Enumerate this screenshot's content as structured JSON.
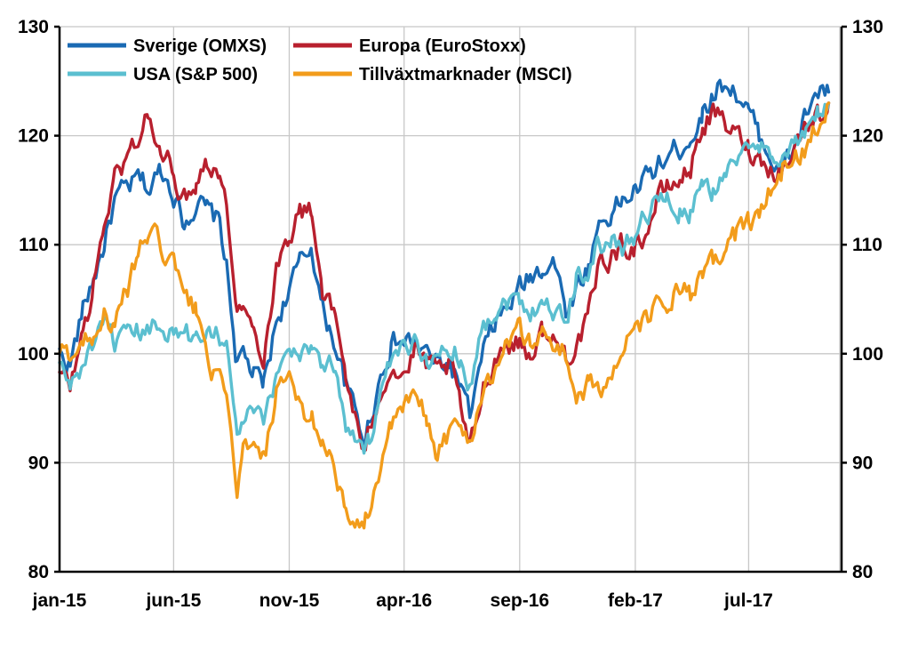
{
  "chart_data": {
    "type": "line",
    "x_labels": [
      "jan-15",
      "jun-15",
      "nov-15",
      "apr-16",
      "sep-16",
      "feb-17",
      "jul-17"
    ],
    "x_range": [
      "2015-01",
      "2017-10"
    ],
    "ylim": [
      80,
      130
    ],
    "y_ticks": [
      80,
      90,
      100,
      110,
      120,
      130
    ],
    "y_tick_labels": [
      "80",
      "90",
      "100",
      "110",
      "120",
      "130"
    ],
    "grid": true,
    "secondary_y_axis": true,
    "legend_position": "top-left",
    "series": [
      {
        "name": "Sverige (OMXS)",
        "color": "#1a6ab3",
        "points": [
          [
            "2015-01-01",
            100
          ],
          [
            "2015-01-15",
            99
          ],
          [
            "2015-02-01",
            104
          ],
          [
            "2015-02-15",
            107
          ],
          [
            "2015-03-01",
            110
          ],
          [
            "2015-03-15",
            114
          ],
          [
            "2015-04-01",
            115
          ],
          [
            "2015-04-15",
            116
          ],
          [
            "2015-05-01",
            115
          ],
          [
            "2015-05-15",
            117
          ],
          [
            "2015-06-01",
            115
          ],
          [
            "2015-06-15",
            112
          ],
          [
            "2015-07-01",
            114
          ],
          [
            "2015-07-15",
            113
          ],
          [
            "2015-08-01",
            112
          ],
          [
            "2015-08-10",
            108
          ],
          [
            "2015-08-24",
            99
          ],
          [
            "2015-09-01",
            100
          ],
          [
            "2015-09-15",
            98
          ],
          [
            "2015-09-28",
            97
          ],
          [
            "2015-10-15",
            103
          ],
          [
            "2015-11-01",
            106
          ],
          [
            "2015-11-15",
            108
          ],
          [
            "2015-12-01",
            110
          ],
          [
            "2015-12-15",
            104
          ],
          [
            "2016-01-01",
            101
          ],
          [
            "2016-01-15",
            97
          ],
          [
            "2016-02-10",
            92
          ],
          [
            "2016-02-15",
            94
          ],
          [
            "2016-03-01",
            98
          ],
          [
            "2016-03-15",
            101
          ],
          [
            "2016-04-01",
            101
          ],
          [
            "2016-04-15",
            101
          ],
          [
            "2016-05-01",
            100
          ],
          [
            "2016-05-15",
            99
          ],
          [
            "2016-06-01",
            99
          ],
          [
            "2016-06-15",
            97
          ],
          [
            "2016-06-27",
            94
          ],
          [
            "2016-07-15",
            100
          ],
          [
            "2016-08-01",
            103
          ],
          [
            "2016-08-15",
            104
          ],
          [
            "2016-09-01",
            106
          ],
          [
            "2016-09-15",
            107
          ],
          [
            "2016-10-01",
            108
          ],
          [
            "2016-10-15",
            109
          ],
          [
            "2016-11-01",
            104
          ],
          [
            "2016-11-15",
            106
          ],
          [
            "2016-12-01",
            108
          ],
          [
            "2016-12-15",
            112
          ],
          [
            "2017-01-01",
            113
          ],
          [
            "2017-01-15",
            114
          ],
          [
            "2017-02-01",
            115
          ],
          [
            "2017-02-15",
            116
          ],
          [
            "2017-03-01",
            117
          ],
          [
            "2017-03-15",
            118
          ],
          [
            "2017-04-01",
            119
          ],
          [
            "2017-04-15",
            120
          ],
          [
            "2017-05-01",
            122
          ],
          [
            "2017-05-15",
            124
          ],
          [
            "2017-06-01",
            125
          ],
          [
            "2017-06-15",
            124
          ],
          [
            "2017-07-01",
            122
          ],
          [
            "2017-07-15",
            120
          ],
          [
            "2017-08-01",
            118
          ],
          [
            "2017-08-15",
            117
          ],
          [
            "2017-09-01",
            119
          ],
          [
            "2017-09-15",
            122
          ],
          [
            "2017-10-01",
            124
          ],
          [
            "2017-10-15",
            124
          ]
        ]
      },
      {
        "name": "Europa (EuroStoxx)",
        "color": "#b8202e",
        "points": [
          [
            "2015-01-01",
            98
          ],
          [
            "2015-01-15",
            97
          ],
          [
            "2015-02-01",
            102
          ],
          [
            "2015-02-15",
            106
          ],
          [
            "2015-03-01",
            112
          ],
          [
            "2015-03-15",
            116
          ],
          [
            "2015-04-01",
            118
          ],
          [
            "2015-04-15",
            120
          ],
          [
            "2015-04-28",
            122
          ],
          [
            "2015-05-15",
            118
          ],
          [
            "2015-06-01",
            117
          ],
          [
            "2015-06-15",
            114
          ],
          [
            "2015-07-01",
            116
          ],
          [
            "2015-07-15",
            118
          ],
          [
            "2015-08-01",
            117
          ],
          [
            "2015-08-10",
            113
          ],
          [
            "2015-08-24",
            105
          ],
          [
            "2015-09-01",
            104
          ],
          [
            "2015-09-15",
            102
          ],
          [
            "2015-09-28",
            100
          ],
          [
            "2015-10-15",
            108
          ],
          [
            "2015-11-01",
            111
          ],
          [
            "2015-11-15",
            113
          ],
          [
            "2015-12-01",
            113
          ],
          [
            "2015-12-15",
            106
          ],
          [
            "2016-01-01",
            103
          ],
          [
            "2016-01-15",
            98
          ],
          [
            "2016-02-10",
            90
          ],
          [
            "2016-02-15",
            93
          ],
          [
            "2016-03-01",
            97
          ],
          [
            "2016-03-15",
            99
          ],
          [
            "2016-04-01",
            98
          ],
          [
            "2016-04-15",
            100
          ],
          [
            "2016-05-01",
            99
          ],
          [
            "2016-05-15",
            98
          ],
          [
            "2016-06-01",
            99
          ],
          [
            "2016-06-15",
            95
          ],
          [
            "2016-06-27",
            91
          ],
          [
            "2016-07-15",
            97
          ],
          [
            "2016-08-01",
            100
          ],
          [
            "2016-08-15",
            101
          ],
          [
            "2016-09-01",
            101
          ],
          [
            "2016-09-15",
            100
          ],
          [
            "2016-10-01",
            102
          ],
          [
            "2016-10-15",
            101
          ],
          [
            "2016-11-01",
            100
          ],
          [
            "2016-11-15",
            101
          ],
          [
            "2016-12-01",
            103
          ],
          [
            "2016-12-15",
            108
          ],
          [
            "2017-01-01",
            109
          ],
          [
            "2017-01-15",
            110
          ],
          [
            "2017-02-01",
            110
          ],
          [
            "2017-02-15",
            111
          ],
          [
            "2017-03-01",
            114
          ],
          [
            "2017-03-15",
            115
          ],
          [
            "2017-04-01",
            116
          ],
          [
            "2017-04-15",
            117
          ],
          [
            "2017-05-01",
            121
          ],
          [
            "2017-05-15",
            122
          ],
          [
            "2017-06-01",
            121
          ],
          [
            "2017-06-15",
            120
          ],
          [
            "2017-07-01",
            119
          ],
          [
            "2017-07-15",
            118
          ],
          [
            "2017-08-01",
            117
          ],
          [
            "2017-08-15",
            117
          ],
          [
            "2017-09-01",
            119
          ],
          [
            "2017-09-15",
            121
          ],
          [
            "2017-10-01",
            122
          ],
          [
            "2017-10-15",
            123
          ]
        ]
      },
      {
        "name": "USA (S&P 500)",
        "color": "#5bbfd0",
        "points": [
          [
            "2015-01-01",
            99
          ],
          [
            "2015-01-15",
            97
          ],
          [
            "2015-02-01",
            99
          ],
          [
            "2015-02-15",
            101
          ],
          [
            "2015-03-01",
            102
          ],
          [
            "2015-03-15",
            101
          ],
          [
            "2015-04-01",
            101
          ],
          [
            "2015-04-15",
            102
          ],
          [
            "2015-05-01",
            102
          ],
          [
            "2015-05-15",
            103
          ],
          [
            "2015-06-01",
            102
          ],
          [
            "2015-06-15",
            102
          ],
          [
            "2015-07-01",
            101
          ],
          [
            "2015-07-15",
            103
          ],
          [
            "2015-08-01",
            102
          ],
          [
            "2015-08-10",
            101
          ],
          [
            "2015-08-24",
            92
          ],
          [
            "2015-09-01",
            94
          ],
          [
            "2015-09-15",
            95
          ],
          [
            "2015-09-28",
            93
          ],
          [
            "2015-10-15",
            98
          ],
          [
            "2015-11-01",
            101
          ],
          [
            "2015-11-15",
            100
          ],
          [
            "2015-12-01",
            101
          ],
          [
            "2015-12-15",
            99
          ],
          [
            "2016-01-01",
            99
          ],
          [
            "2016-01-15",
            94
          ],
          [
            "2016-02-10",
            91
          ],
          [
            "2016-02-15",
            92
          ],
          [
            "2016-03-01",
            96
          ],
          [
            "2016-03-15",
            99
          ],
          [
            "2016-04-01",
            100
          ],
          [
            "2016-04-15",
            101
          ],
          [
            "2016-05-01",
            100
          ],
          [
            "2016-05-15",
            99
          ],
          [
            "2016-06-01",
            101
          ],
          [
            "2016-06-15",
            100
          ],
          [
            "2016-06-27",
            97
          ],
          [
            "2016-07-15",
            103
          ],
          [
            "2016-08-01",
            104
          ],
          [
            "2016-08-15",
            105
          ],
          [
            "2016-09-01",
            105
          ],
          [
            "2016-09-15",
            104
          ],
          [
            "2016-10-01",
            105
          ],
          [
            "2016-10-15",
            104
          ],
          [
            "2016-11-01",
            103
          ],
          [
            "2016-11-15",
            107
          ],
          [
            "2016-12-01",
            108
          ],
          [
            "2016-12-15",
            110
          ],
          [
            "2017-01-01",
            110
          ],
          [
            "2017-01-15",
            110
          ],
          [
            "2017-02-01",
            111
          ],
          [
            "2017-02-15",
            113
          ],
          [
            "2017-03-01",
            114
          ],
          [
            "2017-03-15",
            114
          ],
          [
            "2017-04-01",
            113
          ],
          [
            "2017-04-15",
            113
          ],
          [
            "2017-05-01",
            115
          ],
          [
            "2017-05-15",
            115
          ],
          [
            "2017-06-01",
            117
          ],
          [
            "2017-06-15",
            118
          ],
          [
            "2017-07-01",
            118
          ],
          [
            "2017-07-15",
            119
          ],
          [
            "2017-08-01",
            119
          ],
          [
            "2017-08-15",
            118
          ],
          [
            "2017-09-01",
            119
          ],
          [
            "2017-09-15",
            120
          ],
          [
            "2017-10-01",
            122
          ],
          [
            "2017-10-15",
            123
          ]
        ]
      },
      {
        "name": "Tillväxtmarknader (MSCI)",
        "color": "#f29c1b",
        "points": [
          [
            "2015-01-01",
            100
          ],
          [
            "2015-01-15",
            100
          ],
          [
            "2015-02-01",
            101
          ],
          [
            "2015-02-15",
            102
          ],
          [
            "2015-03-01",
            104
          ],
          [
            "2015-03-15",
            102
          ],
          [
            "2015-04-01",
            106
          ],
          [
            "2015-04-15",
            109
          ],
          [
            "2015-04-28",
            111
          ],
          [
            "2015-05-15",
            110
          ],
          [
            "2015-06-01",
            108
          ],
          [
            "2015-06-15",
            105
          ],
          [
            "2015-07-01",
            104
          ],
          [
            "2015-07-15",
            100
          ],
          [
            "2015-08-01",
            97
          ],
          [
            "2015-08-10",
            95
          ],
          [
            "2015-08-24",
            88
          ],
          [
            "2015-09-01",
            91
          ],
          [
            "2015-09-15",
            91
          ],
          [
            "2015-09-28",
            90
          ],
          [
            "2015-10-15",
            96
          ],
          [
            "2015-11-01",
            97
          ],
          [
            "2015-11-15",
            95
          ],
          [
            "2015-12-01",
            94
          ],
          [
            "2015-12-15",
            92
          ],
          [
            "2016-01-01",
            90
          ],
          [
            "2016-01-15",
            85
          ],
          [
            "2016-01-21",
            83
          ],
          [
            "2016-02-10",
            85
          ],
          [
            "2016-02-15",
            86
          ],
          [
            "2016-03-01",
            90
          ],
          [
            "2016-03-15",
            93
          ],
          [
            "2016-04-01",
            95
          ],
          [
            "2016-04-15",
            96
          ],
          [
            "2016-05-01",
            94
          ],
          [
            "2016-05-15",
            91
          ],
          [
            "2016-06-01",
            93
          ],
          [
            "2016-06-15",
            93
          ],
          [
            "2016-06-27",
            92
          ],
          [
            "2016-07-15",
            97
          ],
          [
            "2016-08-01",
            99
          ],
          [
            "2016-08-15",
            101
          ],
          [
            "2016-09-01",
            102
          ],
          [
            "2016-09-15",
            101
          ],
          [
            "2016-10-01",
            102
          ],
          [
            "2016-10-15",
            101
          ],
          [
            "2016-11-01",
            100
          ],
          [
            "2016-11-15",
            96
          ],
          [
            "2016-12-01",
            97
          ],
          [
            "2016-12-15",
            97
          ],
          [
            "2017-01-01",
            98
          ],
          [
            "2017-01-15",
            100
          ],
          [
            "2017-02-01",
            102
          ],
          [
            "2017-02-15",
            103
          ],
          [
            "2017-03-01",
            104
          ],
          [
            "2017-03-15",
            105
          ],
          [
            "2017-04-01",
            106
          ],
          [
            "2017-04-15",
            105
          ],
          [
            "2017-05-01",
            107
          ],
          [
            "2017-05-15",
            108
          ],
          [
            "2017-06-01",
            110
          ],
          [
            "2017-06-15",
            111
          ],
          [
            "2017-07-01",
            112
          ],
          [
            "2017-07-15",
            113
          ],
          [
            "2017-08-01",
            115
          ],
          [
            "2017-08-15",
            117
          ],
          [
            "2017-09-01",
            118
          ],
          [
            "2017-09-15",
            119
          ],
          [
            "2017-10-01",
            121
          ],
          [
            "2017-10-15",
            123
          ]
        ]
      }
    ]
  }
}
